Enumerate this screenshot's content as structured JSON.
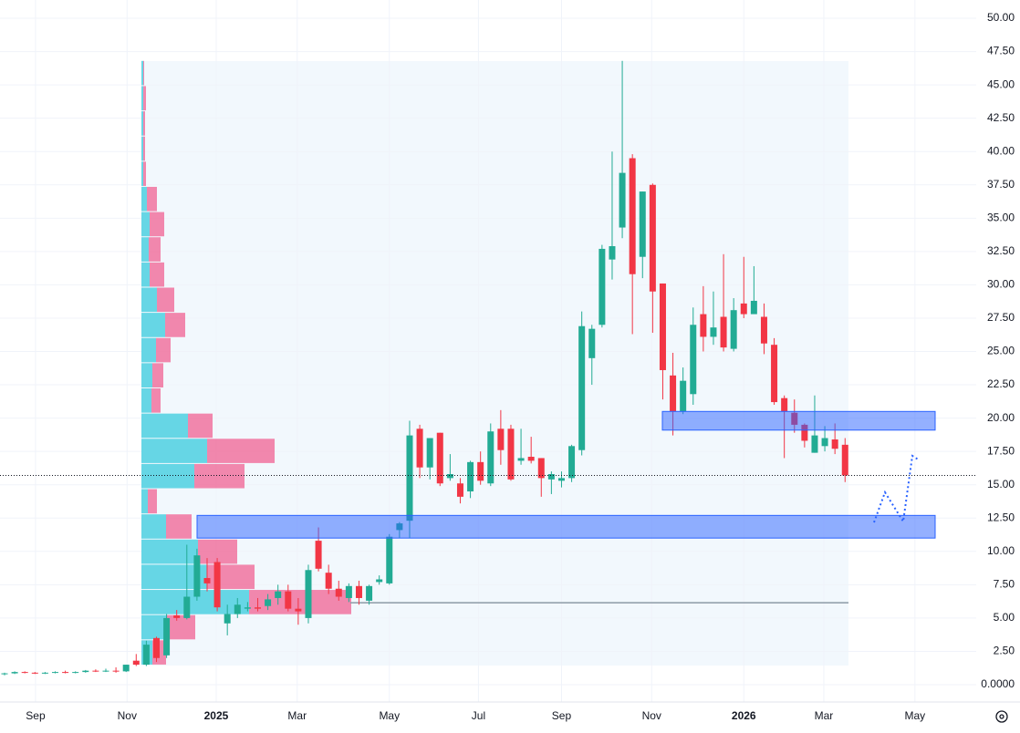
{
  "chart_data": {
    "type": "candlestick",
    "x": [
      0,
      1,
      2,
      3,
      4,
      5,
      6,
      7,
      8,
      9,
      10,
      11,
      12,
      13,
      14,
      15,
      16,
      17,
      18,
      19,
      20,
      21,
      22,
      23,
      24,
      25,
      26,
      27,
      28,
      29,
      30,
      31,
      32,
      33,
      34,
      35,
      36,
      37,
      38,
      39,
      40,
      41,
      42,
      43,
      44,
      45,
      46,
      47,
      48,
      49,
      50,
      51,
      52,
      53,
      54,
      55,
      56,
      57,
      58,
      59,
      60,
      61,
      62,
      63,
      64,
      65,
      66,
      67,
      68,
      69,
      70,
      71,
      72,
      73,
      74,
      75,
      76,
      77,
      78,
      79,
      80,
      81,
      82,
      83
    ],
    "open": [
      0.8,
      0.85,
      0.95,
      0.9,
      0.85,
      0.9,
      0.95,
      0.9,
      0.95,
      1.05,
      1.0,
      1.05,
      1.0,
      1.8,
      1.5,
      3.5,
      2.2,
      5.2,
      5.0,
      6.6,
      8.0,
      9.2,
      4.6,
      5.3,
      5.7,
      5.8,
      5.9,
      6.5,
      7.0,
      5.7,
      5.0,
      10.8,
      8.4,
      7.2,
      6.5,
      7.4,
      6.3,
      7.7,
      7.6,
      11.6,
      12.3,
      19.2,
      16.3,
      18.9,
      15.5,
      15.1,
      14.5,
      16.7,
      15.1,
      19.2,
      19.2,
      16.8,
      17.1,
      17.0,
      15.4,
      15.3,
      15.5,
      17.6,
      24.5,
      27.0,
      31.9,
      34.3,
      39.5,
      32.1,
      37.5,
      30.1,
      23.2,
      20.5,
      21.8,
      27.8,
      26.1,
      27.6,
      25.2,
      28.6,
      27.8,
      27.6,
      25.5,
      21.5,
      20.4,
      19.5,
      17.4,
      17.9,
      18.4,
      18.0
    ],
    "high": [
      0.9,
      1.0,
      1.0,
      0.95,
      0.95,
      1.0,
      1.05,
      1.0,
      1.1,
      1.15,
      1.2,
      1.3,
      1.5,
      2.3,
      3.3,
      3.6,
      5.3,
      5.6,
      10.5,
      10.2,
      9.5,
      9.5,
      6.0,
      6.5,
      6.2,
      6.5,
      6.8,
      7.5,
      7.5,
      6.5,
      9.0,
      11.8,
      9.0,
      7.8,
      7.6,
      7.8,
      7.5,
      8.2,
      11.3,
      12.2,
      19.8,
      19.5,
      18.5,
      18.9,
      17.3,
      15.5,
      16.8,
      17.5,
      19.6,
      20.6,
      19.5,
      19.2,
      18.6,
      17.0,
      16.0,
      16.0,
      18.0,
      28.0,
      27.0,
      33.0,
      40.0,
      46.8,
      39.8,
      37.0,
      37.6,
      30.1,
      24.9,
      23.8,
      28.3,
      29.9,
      29.5,
      32.3,
      29.0,
      32.1,
      31.4,
      28.6,
      26.0,
      21.7,
      21.4,
      19.6,
      21.7,
      19.4,
      19.6,
      18.5
    ],
    "low": [
      0.7,
      0.8,
      0.85,
      0.8,
      0.8,
      0.85,
      0.85,
      0.85,
      0.9,
      0.95,
      0.95,
      0.9,
      0.95,
      1.4,
      1.4,
      1.7,
      2.0,
      4.8,
      4.9,
      6.3,
      7.0,
      5.5,
      3.7,
      5.0,
      5.5,
      5.5,
      5.6,
      6.0,
      5.5,
      4.5,
      4.6,
      8.5,
      6.8,
      6.3,
      6.2,
      6.0,
      6.0,
      7.5,
      7.5,
      11.0,
      11.0,
      15.5,
      15.4,
      14.9,
      15.3,
      13.6,
      14.0,
      15.0,
      14.9,
      16.5,
      15.3,
      16.5,
      16.6,
      14.1,
      14.3,
      14.8,
      15.2,
      17.2,
      22.5,
      26.8,
      30.4,
      33.5,
      26.3,
      30.5,
      26.4,
      21.4,
      18.7,
      20.3,
      21.0,
      25.0,
      25.5,
      25.0,
      25.0,
      27.5,
      27.9,
      24.8,
      21.0,
      17.0,
      18.9,
      17.8,
      17.4,
      17.5,
      17.3,
      15.2
    ],
    "close": [
      0.85,
      0.95,
      0.9,
      0.85,
      0.9,
      0.95,
      0.9,
      0.95,
      1.05,
      1.0,
      1.05,
      1.0,
      1.5,
      1.5,
      3.0,
      2.0,
      5.0,
      5.0,
      6.6,
      9.7,
      7.6,
      5.8,
      5.3,
      6.0,
      5.8,
      5.7,
      6.4,
      7.0,
      5.7,
      5.5,
      8.6,
      8.7,
      7.2,
      6.6,
      7.4,
      6.5,
      7.4,
      7.9,
      11.1,
      12.1,
      18.7,
      16.3,
      18.5,
      15.1,
      15.8,
      14.1,
      16.7,
      15.3,
      19.0,
      17.6,
      15.4,
      17.0,
      16.8,
      15.5,
      15.8,
      15.5,
      17.9,
      26.9,
      26.7,
      32.7,
      32.9,
      38.4,
      30.8,
      37.0,
      29.5,
      23.6,
      20.5,
      22.8,
      27.0,
      26.1,
      26.8,
      25.3,
      28.1,
      27.8,
      28.8,
      25.6,
      21.2,
      20.5,
      19.5,
      18.3,
      18.7,
      18.5,
      17.7,
      15.7
    ],
    "up_color": "#22ab94",
    "down_color": "#f23645",
    "xlim": [
      -0.45,
      95.95
    ],
    "xticks": [
      {
        "value": 3.06,
        "label": "Sep"
      },
      {
        "value": 12.1,
        "label": "Nov"
      },
      {
        "value": 20.9,
        "label": "2025"
      },
      {
        "value": 28.9,
        "label": "Mar"
      },
      {
        "value": 38.0,
        "label": "May"
      },
      {
        "value": 46.8,
        "label": "Jul"
      },
      {
        "value": 55.0,
        "label": "Sep"
      },
      {
        "value": 63.9,
        "label": "Nov"
      },
      {
        "value": 73.0,
        "label": "2026"
      },
      {
        "value": 80.9,
        "label": "Mar"
      },
      {
        "value": 89.9,
        "label": "May"
      }
    ],
    "ylim": [
      -1.3,
      51.37
    ],
    "yticks": [
      {
        "value": 0,
        "label": "0.0000"
      },
      {
        "value": 2.5,
        "label": "2.50"
      },
      {
        "value": 5,
        "label": "5.00"
      },
      {
        "value": 7.5,
        "label": "7.50"
      },
      {
        "value": 10,
        "label": "10.00"
      },
      {
        "value": 12.5,
        "label": "12.50"
      },
      {
        "value": 15,
        "label": "15.00"
      },
      {
        "value": 17.5,
        "label": "17.50"
      },
      {
        "value": 20,
        "label": "20.00"
      },
      {
        "value": 22.5,
        "label": "22.50"
      },
      {
        "value": 25,
        "label": "25.00"
      },
      {
        "value": 27.5,
        "label": "27.50"
      },
      {
        "value": 30,
        "label": "30.00"
      },
      {
        "value": 32.5,
        "label": "32.50"
      },
      {
        "value": 35,
        "label": "35.00"
      },
      {
        "value": 37.5,
        "label": "37.50"
      },
      {
        "value": 40,
        "label": "40.00"
      },
      {
        "value": 42.5,
        "label": "42.50"
      },
      {
        "value": 45,
        "label": "45.00"
      },
      {
        "value": 47.5,
        "label": "47.50"
      },
      {
        "value": 50,
        "label": "50.00"
      }
    ],
    "grid": true,
    "zones": [
      {
        "low": 11.0,
        "high": 12.7
      },
      {
        "low": 19.1,
        "high": 20.5
      }
    ],
    "level_line": 6.15,
    "volume_profile": {
      "row_edges": [
        1.44,
        3.33,
        5.22,
        7.11,
        9.0,
        10.89,
        12.78,
        14.67,
        16.56,
        18.45,
        20.34,
        22.23,
        24.12,
        26.01,
        27.9,
        29.79,
        31.68,
        33.57,
        35.46,
        37.35,
        39.24,
        41.13,
        43.02,
        44.91,
        46.8
      ],
      "up": [
        12,
        27,
        118,
        72,
        62,
        27,
        7,
        58,
        72,
        51,
        11,
        12,
        16,
        26,
        17,
        9,
        8,
        9,
        6,
        2,
        2,
        2,
        2,
        2
      ],
      "down": [
        15,
        32,
        112,
        52,
        43,
        28,
        10,
        55,
        74,
        27,
        10,
        12,
        16,
        22,
        19,
        16,
        13,
        16,
        11,
        3,
        2,
        2,
        3,
        1
      ]
    }
  }
}
